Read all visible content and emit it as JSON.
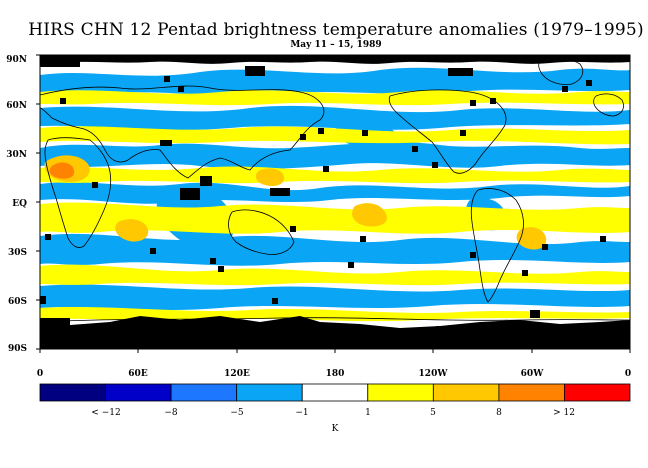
{
  "header": {
    "title": "HIRS CHN 12 Pentad brightness temperature anomalies (1979–1995)",
    "subtitle": "May 11 – 15, 1989"
  },
  "map": {
    "lat_labels": [
      "90N",
      "60N",
      "30N",
      "EQ",
      "30S",
      "60S",
      "90S"
    ],
    "lon_labels": [
      "0",
      "60E",
      "120E",
      "180",
      "120W",
      "60W",
      "0"
    ]
  },
  "colorbar": {
    "unit": "K",
    "labels": [
      "< −12",
      "−8",
      "−5",
      "−1",
      "1",
      "5",
      "8",
      "> 12"
    ],
    "colors": [
      "#000080",
      "#0000c8",
      "#1e78ff",
      "#0aa5f5",
      "#ffffff",
      "#ffff00",
      "#ffc800",
      "#ff8200",
      "#ff0000"
    ]
  },
  "colors": {
    "missing": "#000000",
    "land_outline": "#000000"
  }
}
